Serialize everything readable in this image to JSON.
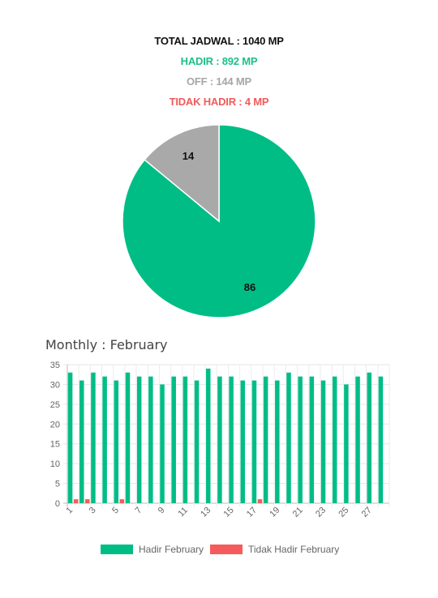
{
  "summary": {
    "total": "TOTAL JADWAL : 1040 MP",
    "hadir": "HADIR : 892 MP",
    "off": "OFF : 144 MP",
    "tidak_hadir": "TIDAK HADIR : 4 MP"
  },
  "colors": {
    "hadir": "#00bd86",
    "off": "#a9a9a9",
    "tidak": "#f65b5b"
  },
  "monthly_title": "Monthly : February",
  "chart_data": [
    {
      "type": "pie",
      "values": [
        86,
        14
      ],
      "labels": [
        "86",
        "14"
      ],
      "colors": [
        "#00bd86",
        "#a9a9a9"
      ]
    },
    {
      "type": "bar",
      "title": "Monthly : February",
      "categories": [
        1,
        2,
        3,
        4,
        5,
        6,
        7,
        8,
        9,
        10,
        11,
        12,
        13,
        14,
        15,
        16,
        17,
        18,
        19,
        20,
        21,
        22,
        23,
        24,
        25,
        26,
        27,
        28
      ],
      "tick_labels": [
        "1",
        "3",
        "5",
        "7",
        "9",
        "11",
        "13",
        "15",
        "17",
        "19",
        "21",
        "23",
        "25",
        "27"
      ],
      "series": [
        {
          "name": "Hadir February",
          "color": "#00bd86",
          "values": [
            33,
            31,
            33,
            32,
            31,
            33,
            32,
            32,
            30,
            32,
            32,
            31,
            34,
            32,
            32,
            31,
            31,
            32,
            31,
            33,
            32,
            32,
            31,
            32,
            30,
            32,
            33,
            32
          ]
        },
        {
          "name": "Tidak Hadir February",
          "color": "#f65b5b",
          "values": [
            1,
            1,
            0,
            0,
            1,
            0,
            0,
            0,
            0,
            0,
            0,
            0,
            0,
            0,
            0,
            0,
            1,
            0,
            0,
            0,
            0,
            0,
            0,
            0,
            0,
            0,
            0,
            0
          ]
        }
      ],
      "ylim": [
        0,
        35
      ],
      "yticks": [
        0,
        5,
        10,
        15,
        20,
        25,
        30,
        35
      ],
      "grid": true,
      "legend": "bottom"
    }
  ]
}
